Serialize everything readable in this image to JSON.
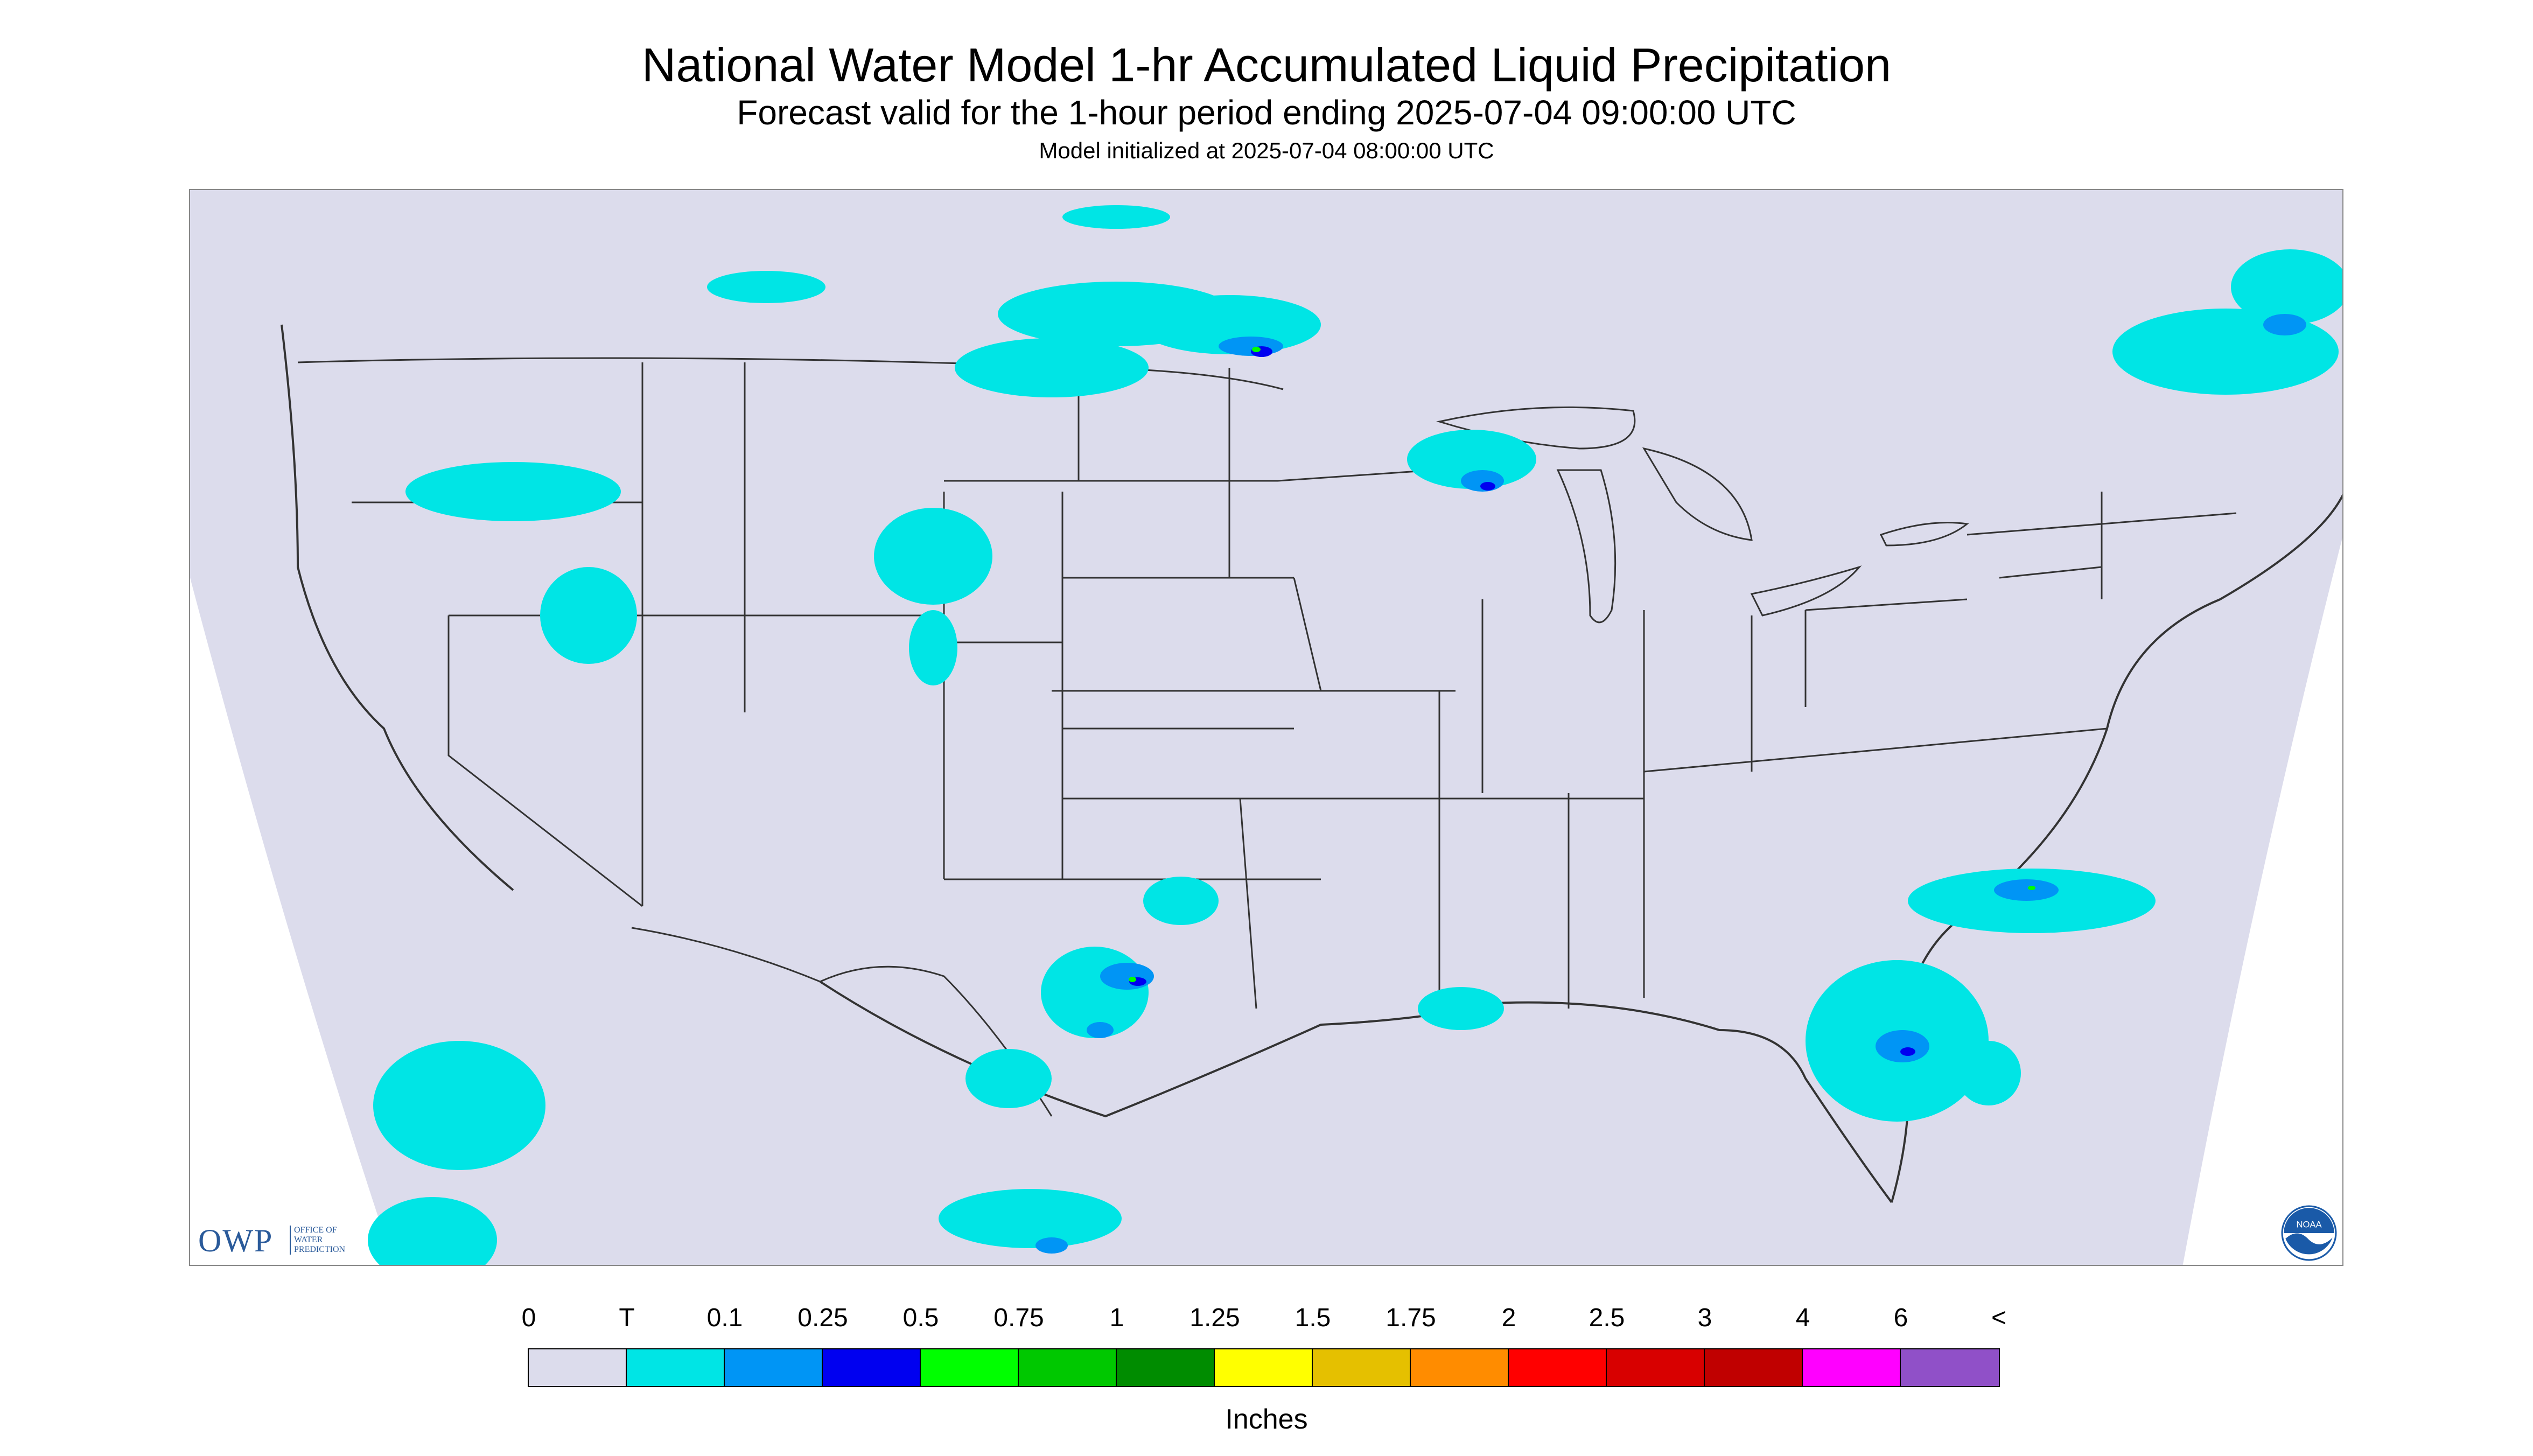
{
  "title": "National Water Model 1-hr Accumulated Liquid Precipitation",
  "subtitle": "Forecast valid for the 1-hour period ending 2025-07-04 09:00:00 UTC",
  "init_line": "Model initialized at 2025-07-04 08:00:00 UTC",
  "logo": {
    "text": "OWP",
    "subtext": "OFFICE OF\nWATER\nPREDICTION",
    "noaa_text": "NOAA"
  },
  "legend": {
    "labels": [
      "0",
      "T",
      "0.1",
      "0.25",
      "0.5",
      "0.75",
      "1",
      "1.25",
      "1.5",
      "1.75",
      "2",
      "2.5",
      "3",
      "4",
      "6",
      "<"
    ],
    "colors": [
      "#dcdcec",
      "#00e5e5",
      "#0095f5",
      "#0000f0",
      "#00ff00",
      "#00c800",
      "#008c00",
      "#ffff00",
      "#e5c000",
      "#ff8c00",
      "#ff0000",
      "#d80000",
      "#c00000",
      "#ff00ff",
      "#9050c8"
    ],
    "units": "Inches"
  },
  "colors": {
    "background_domain": "#dcdcec",
    "trace": "#00e5e5",
    "light": "#0095f5",
    "moderate": "#0000f0",
    "heavy": "#00ff00",
    "border": "#333333"
  }
}
